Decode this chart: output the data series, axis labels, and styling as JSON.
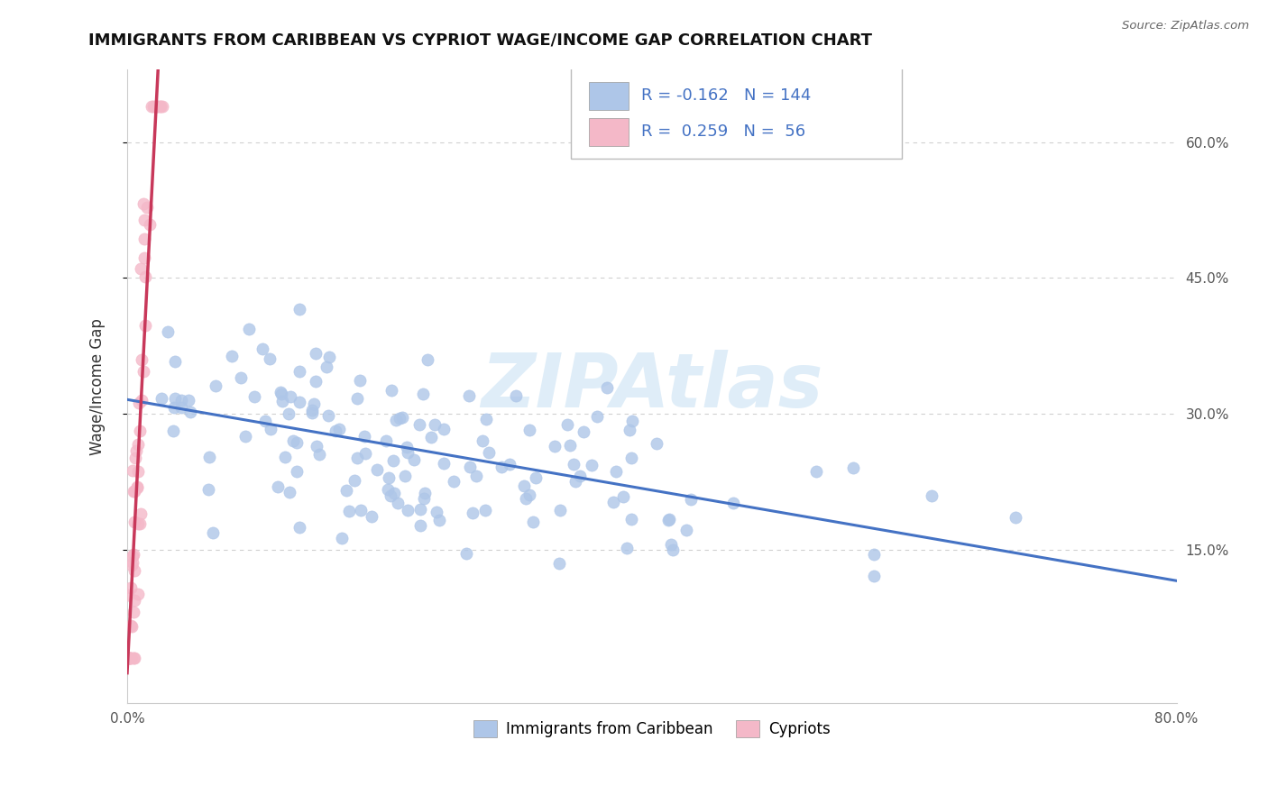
{
  "title": "IMMIGRANTS FROM CARIBBEAN VS CYPRIOT WAGE/INCOME GAP CORRELATION CHART",
  "source": "Source: ZipAtlas.com",
  "ylabel": "Wage/Income Gap",
  "xlim": [
    0.0,
    0.8
  ],
  "ylim": [
    -0.02,
    0.68
  ],
  "xticks": [
    0.0,
    0.1,
    0.2,
    0.3,
    0.4,
    0.5,
    0.6,
    0.7,
    0.8
  ],
  "yticks": [
    0.15,
    0.3,
    0.45,
    0.6
  ],
  "yticklabels": [
    "15.0%",
    "30.0%",
    "45.0%",
    "60.0%"
  ],
  "R_caribbean": -0.162,
  "N_caribbean": 144,
  "R_cypriot": 0.259,
  "N_cypriot": 56,
  "caribbean_color": "#aec6e8",
  "cypriot_color": "#f4b8c8",
  "caribbean_line_color": "#4472c4",
  "cypriot_line_color": "#c8385a",
  "cypriot_dash_color": "#e8a0b0",
  "legend_label_caribbean": "Immigrants from Caribbean",
  "legend_label_cypriot": "Cypriots",
  "watermark": "ZIPAtlas",
  "background_color": "#ffffff",
  "title_fontsize": 13,
  "axis_label_fontsize": 11,
  "legend_fontsize": 13
}
